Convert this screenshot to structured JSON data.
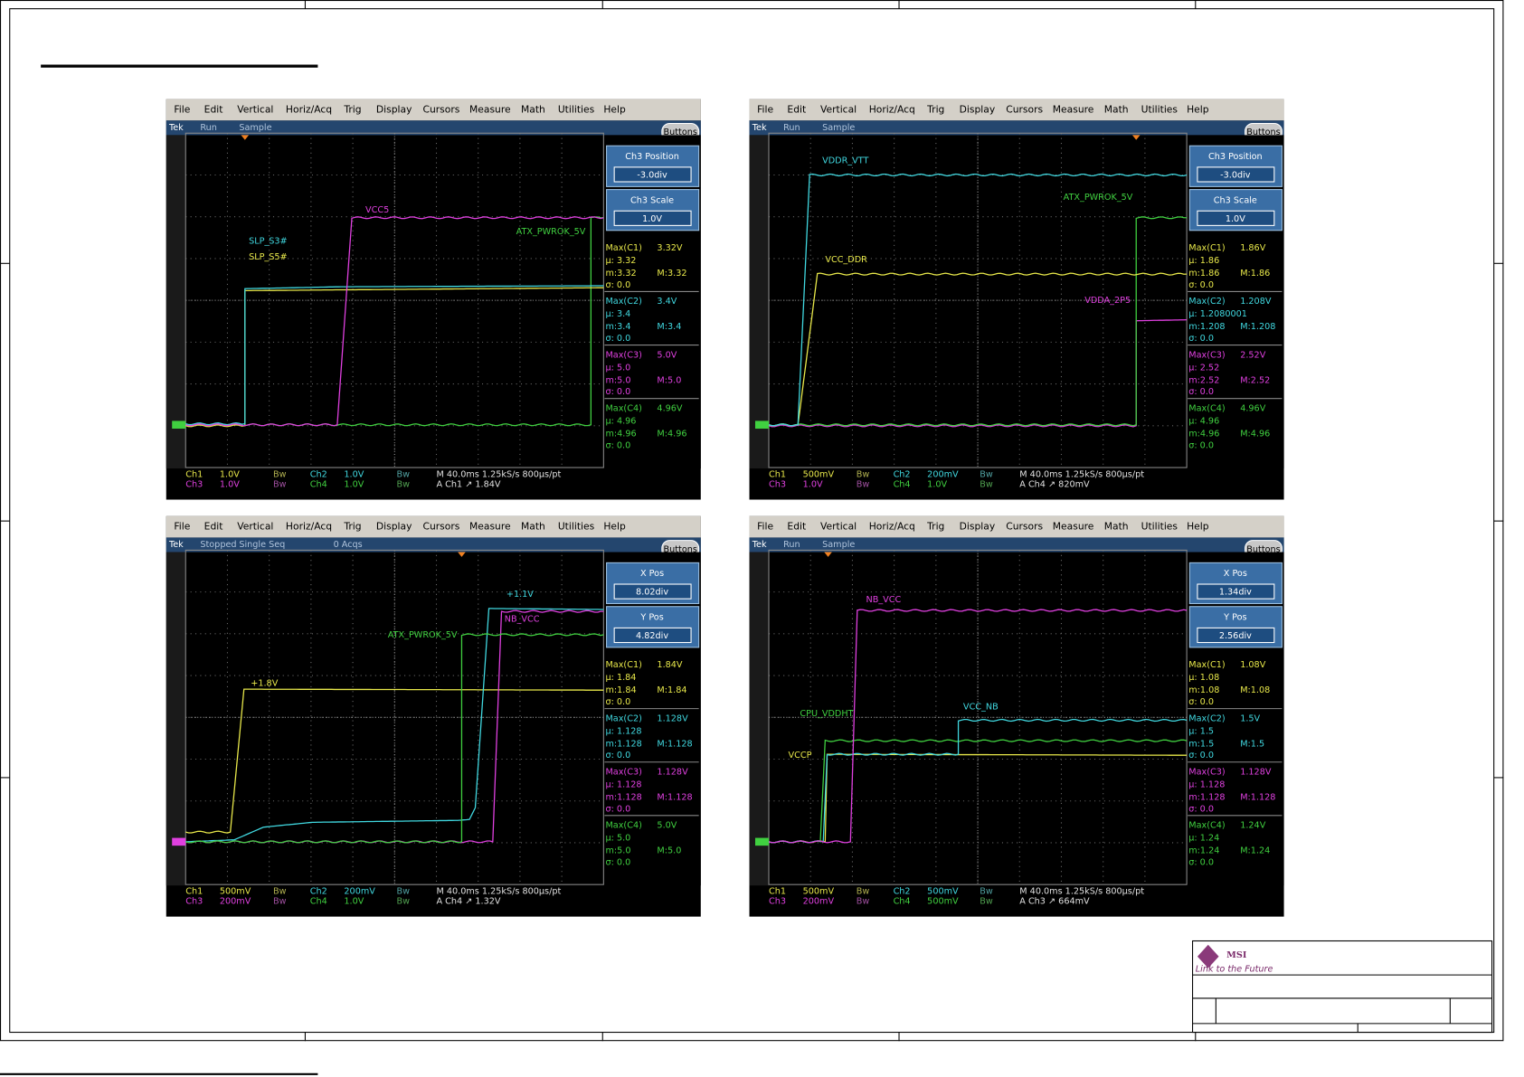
{
  "sheet": {
    "logo": "MSI",
    "tagline": "Link to the Future"
  },
  "menu": [
    "File",
    "Edit",
    "Vertical",
    "Horiz/Acq",
    "Trig",
    "Display",
    "Cursors",
    "Measure",
    "Math",
    "Utilities",
    "Help"
  ],
  "scopes": [
    {
      "status": [
        "Tek",
        "Run",
        "Sample"
      ],
      "buttons": "Buttons",
      "panels": [
        {
          "title": "Ch3 Position",
          "value": "-3.0div"
        },
        {
          "title": "Ch3 Scale",
          "value": "1.0V"
        }
      ],
      "measures": [
        {
          "name": "Max(C1)",
          "value": "3.32V",
          "mean": "µ: 3.32",
          "min": "m:3.32",
          "max": "M:3.32",
          "sigma": "σ: 0.0"
        },
        {
          "name": "Max(C2)",
          "value": "3.4V",
          "mean": "µ: 3.4",
          "min": "m:3.4",
          "max": "M:3.4",
          "sigma": "σ: 0.0"
        },
        {
          "name": "Max(C3)",
          "value": "5.0V",
          "mean": "µ: 5.0",
          "min": "m:5.0",
          "max": "M:5.0",
          "sigma": "σ: 0.0"
        },
        {
          "name": "Max(C4)",
          "value": "4.96V",
          "mean": "µ: 4.96",
          "min": "m:4.96",
          "max": "M:4.96",
          "sigma": "σ: 0.0"
        }
      ],
      "labels": [
        "VCC5",
        "ATX_PWROK_5V",
        "SLP_S3#",
        "SLP_S5#"
      ],
      "footer": [
        [
          "Ch1",
          "1.0V",
          "Bw",
          "Ch2",
          "1.0V",
          "Bw",
          "M 40.0ms 1.25kS/s 800µs/pt"
        ],
        [
          "Ch3",
          "1.0V",
          "Bw",
          "Ch4",
          "1.0V",
          "Bw",
          "A Ch1 ↗ 1.84V"
        ]
      ]
    },
    {
      "status": [
        "Tek",
        "Run",
        "Sample"
      ],
      "buttons": "Buttons",
      "panels": [
        {
          "title": "Ch3 Position",
          "value": "-3.0div"
        },
        {
          "title": "Ch3 Scale",
          "value": "1.0V"
        }
      ],
      "measures": [
        {
          "name": "Max(C1)",
          "value": "1.86V",
          "mean": "µ: 1.86",
          "min": "m:1.86",
          "max": "M:1.86",
          "sigma": "σ: 0.0"
        },
        {
          "name": "Max(C2)",
          "value": "1.208V",
          "mean": "µ: 1.2080001",
          "min": "m:1.208",
          "max": "M:1.208",
          "sigma": "σ: 0.0"
        },
        {
          "name": "Max(C3)",
          "value": "2.52V",
          "mean": "µ: 2.52",
          "min": "m:2.52",
          "max": "M:2.52",
          "sigma": "σ: 0.0"
        },
        {
          "name": "Max(C4)",
          "value": "4.96V",
          "mean": "µ: 4.96",
          "min": "m:4.96",
          "max": "M:4.96",
          "sigma": "σ: 0.0"
        }
      ],
      "labels": [
        "VDDR_VTT",
        "ATX_PWROK_5V",
        "VCC_DDR",
        "VDDA_2P5"
      ],
      "footer": [
        [
          "Ch1",
          "500mV",
          "Bw",
          "Ch2",
          "200mV",
          "Bw",
          "M 40.0ms 1.25kS/s 800µs/pt"
        ],
        [
          "Ch3",
          "1.0V",
          "Bw",
          "Ch4",
          "1.0V",
          "Bw",
          "A Ch4 ↗ 820mV"
        ]
      ]
    },
    {
      "status": [
        "Tek",
        "Stopped",
        "Single Seq",
        "0 Acqs"
      ],
      "buttons": "Buttons",
      "panels": [
        {
          "title": "X Pos",
          "value": "8.02div"
        },
        {
          "title": "Y Pos",
          "value": "4.82div"
        }
      ],
      "measures": [
        {
          "name": "Max(C1)",
          "value": "1.84V",
          "mean": "µ: 1.84",
          "min": "m:1.84",
          "max": "M:1.84",
          "sigma": "σ: 0.0"
        },
        {
          "name": "Max(C2)",
          "value": "1.128V",
          "mean": "µ: 1.128",
          "min": "m:1.128",
          "max": "M:1.128",
          "sigma": "σ: 0.0"
        },
        {
          "name": "Max(C3)",
          "value": "1.128V",
          "mean": "µ: 1.128",
          "min": "m:1.128",
          "max": "M:1.128",
          "sigma": "σ: 0.0"
        },
        {
          "name": "Max(C4)",
          "value": "5.0V",
          "mean": "µ: 5.0",
          "min": "m:5.0",
          "max": "M:5.0",
          "sigma": "σ: 0.0"
        }
      ],
      "labels": [
        "+1.1V",
        "NB_VCC",
        "ATX_PWROK_5V",
        "+1.8V"
      ],
      "footer": [
        [
          "Ch1",
          "500mV",
          "Bw",
          "Ch2",
          "200mV",
          "Bw",
          "M 40.0ms 1.25kS/s 800µs/pt"
        ],
        [
          "Ch3",
          "200mV",
          "Bw",
          "Ch4",
          "1.0V",
          "Bw",
          "A Ch4 ↗ 1.32V"
        ]
      ]
    },
    {
      "status": [
        "Tek",
        "Run",
        "Sample"
      ],
      "buttons": "Buttons",
      "panels": [
        {
          "title": "X Pos",
          "value": "1.34div"
        },
        {
          "title": "Y Pos",
          "value": "2.56div"
        }
      ],
      "measures": [
        {
          "name": "Max(C1)",
          "value": "1.08V",
          "mean": "µ: 1.08",
          "min": "m:1.08",
          "max": "M:1.08",
          "sigma": "σ: 0.0"
        },
        {
          "name": "Max(C2)",
          "value": "1.5V",
          "mean": "µ: 1.5",
          "min": "m:1.5",
          "max": "M:1.5",
          "sigma": "σ: 0.0"
        },
        {
          "name": "Max(C3)",
          "value": "1.128V",
          "mean": "µ: 1.128",
          "min": "m:1.128",
          "max": "M:1.128",
          "sigma": "σ: 0.0"
        },
        {
          "name": "Max(C4)",
          "value": "1.24V",
          "mean": "µ: 1.24",
          "min": "m:1.24",
          "max": "M:1.24",
          "sigma": "σ: 0.0"
        }
      ],
      "labels": [
        "NB_VCC",
        "VCC_NB",
        "CPU_VDDHT",
        "VCCP"
      ],
      "footer": [
        [
          "Ch1",
          "500mV",
          "Bw",
          "Ch2",
          "500mV",
          "Bw",
          "M 40.0ms 1.25kS/s 800µs/pt"
        ],
        [
          "Ch3",
          "200mV",
          "Bw",
          "Ch4",
          "500mV",
          "Bw",
          "A Ch3 ↗ 664mV"
        ]
      ]
    }
  ]
}
